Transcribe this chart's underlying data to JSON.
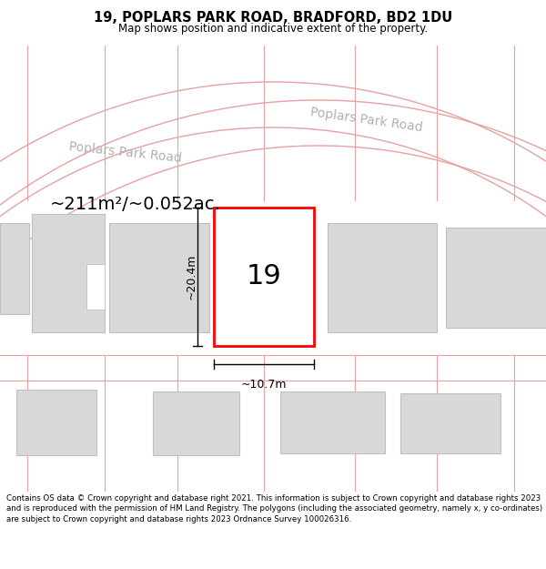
{
  "title": "19, POPLARS PARK ROAD, BRADFORD, BD2 1DU",
  "subtitle": "Map shows position and indicative extent of the property.",
  "footer": "Contains OS data © Crown copyright and database right 2021. This information is subject to Crown copyright and database rights 2023 and is reproduced with the permission of HM Land Registry. The polygons (including the associated geometry, namely x, y co-ordinates) are subject to Crown copyright and database rights 2023 Ordnance Survey 100026316.",
  "area_label": "~211m²/~0.052ac.",
  "width_label": "~10.7m",
  "height_label": "~20.4m",
  "number_label": "19",
  "bg_color": "#ffffff",
  "road_color": "#e8a0a0",
  "plot_color": "#ff0000",
  "building_fill": "#d8d8d8",
  "building_edge": "#c0c0c0",
  "road_label_color": "#b0b0b0",
  "dim_color": "#000000",
  "title_fontsize": 10.5,
  "subtitle_fontsize": 8.5,
  "footer_fontsize": 6.2,
  "area_fontsize": 14,
  "number_fontsize": 22,
  "dim_fontsize": 9,
  "road_fontsize": 10
}
